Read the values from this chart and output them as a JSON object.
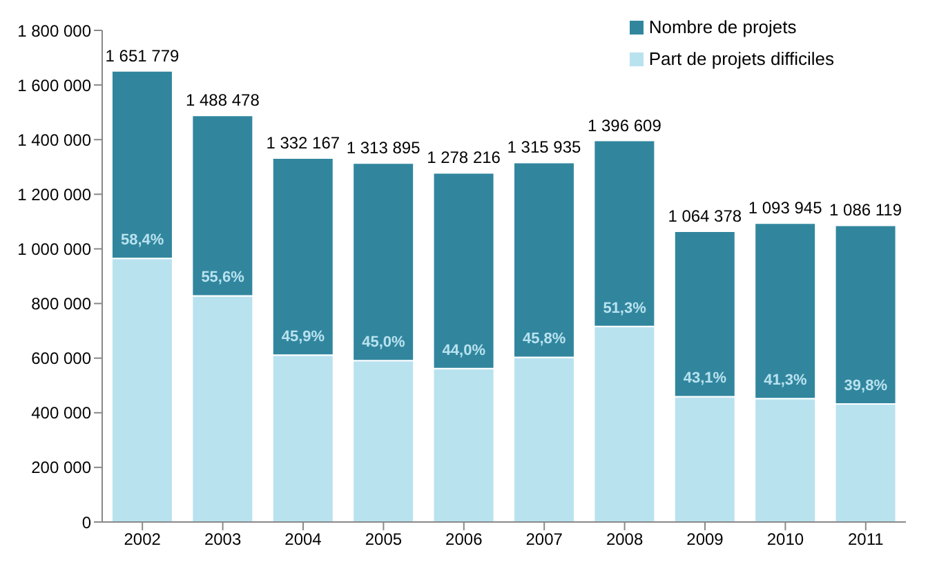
{
  "chart_data": {
    "type": "bar",
    "stacked": true,
    "legend": "top right",
    "categories": [
      "2002",
      "2003",
      "2004",
      "2005",
      "2006",
      "2007",
      "2008",
      "2009",
      "2010",
      "2011"
    ],
    "series": [
      {
        "name": "Part de projets difficiles",
        "color": "#b9e2ef",
        "values": [
          965000,
          828000,
          611000,
          591000,
          562000,
          603000,
          716000,
          459000,
          452000,
          432000
        ]
      },
      {
        "name": "Nombre de projets",
        "color": "#31869e",
        "values": [
          686779,
          660478,
          721167,
          722895,
          716216,
          712935,
          680609,
          605378,
          641945,
          654119
        ]
      }
    ],
    "annotations": [
      {
        "text": "58,4%",
        "x": "2002",
        "y": 965000
      },
      {
        "text": "55,6%",
        "x": "2003",
        "y": 828000
      },
      {
        "text": "45,9%",
        "x": "2004",
        "y": 611000
      },
      {
        "text": "45,0%",
        "x": "2005",
        "y": 591000
      },
      {
        "text": "44,0%",
        "x": "2006",
        "y": 562000
      },
      {
        "text": "45,8%",
        "x": "2007",
        "y": 603000
      },
      {
        "text": "51,3%",
        "x": "2008",
        "y": 716000
      },
      {
        "text": "43,1%",
        "x": "2009",
        "y": 459000
      },
      {
        "text": "41,3%",
        "x": "2010",
        "y": 452000
      },
      {
        "text": "39,8%",
        "x": "2011",
        "y": 432000
      }
    ],
    "totals": [
      "1 651 779",
      "1 488 478",
      "1 332 167",
      "1 313 895",
      "1 278 216",
      "1 315 935",
      "1 396 609",
      "1 064 378",
      "1 093 945",
      "1 086 119"
    ],
    "ylim": [
      0,
      1800000
    ],
    "yticks": [
      0,
      {
        "value": 200000,
        "label": "200 000"
      },
      {
        "value": 400000,
        "label": "400 000"
      },
      {
        "value": 600000,
        "label": "600 000"
      },
      {
        "value": 800000,
        "label": "800 000"
      },
      {
        "value": 1000000,
        "label": "1 000 000"
      },
      {
        "value": 1200000,
        "label": "1 200 000"
      },
      {
        "value": 1400000,
        "label": "1 400 000"
      },
      {
        "value": 1600000,
        "label": "1 600 000"
      },
      {
        "value": 1800000,
        "label": "1 800 000"
      }
    ]
  }
}
